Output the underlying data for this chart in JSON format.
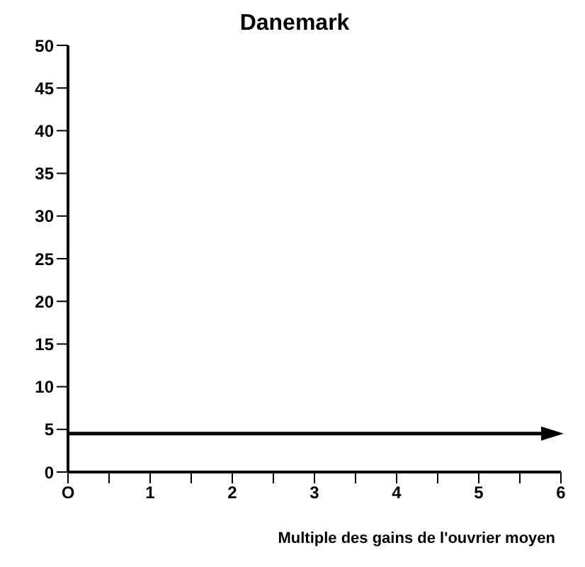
{
  "chart_data": {
    "type": "line",
    "title": "Danemark",
    "xlabel": "Multiple des gains de l'ouvrier moyen",
    "ref_lines": [
      {
        "axis": "y",
        "value": 4.5,
        "color": "#000000"
      }
    ],
    "xlim": [
      0,
      6
    ],
    "xticks": [
      {
        "value": 0,
        "label": "O"
      },
      {
        "value": 0.5,
        "label": null
      },
      1,
      {
        "value": 1.5,
        "label": null
      },
      2,
      {
        "value": 2.5,
        "label": null
      },
      3,
      {
        "value": 3.5,
        "label": null
      },
      4,
      {
        "value": 4.5,
        "label": null
      },
      5,
      {
        "value": 5.5,
        "label": null
      },
      6
    ],
    "ylim": [
      0,
      50
    ],
    "yticks": [
      0,
      5,
      10,
      15,
      20,
      25,
      30,
      35,
      40,
      45,
      50
    ],
    "grid": false
  }
}
